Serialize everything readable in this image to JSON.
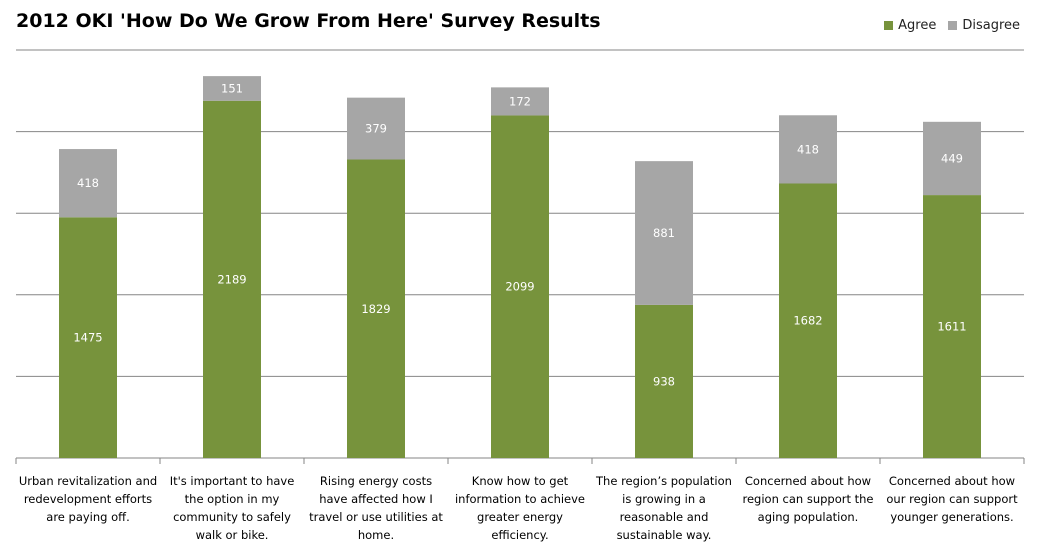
{
  "chart_data": {
    "type": "bar",
    "stacked": true,
    "title": "2012 OKI 'How Do We Grow From Here' Survey Results",
    "categories": [
      "Urban revitalization and redevelopment efforts are paying off.",
      "It's important to have the option in my community to safely walk or bike.",
      "Rising energy costs have affected how I travel or use utilities at home.",
      "Know how to get information to achieve greater energy efficiency.",
      "The region’s population is growing in a reasonable and sustainable  way.",
      "Concerned about how region can support the aging population.",
      "Concerned about how our region can support younger generations."
    ],
    "series": [
      {
        "name": "Agree",
        "color": "#77933c",
        "values": [
          1475,
          2189,
          1829,
          2099,
          938,
          1682,
          1611
        ]
      },
      {
        "name": "Disagree",
        "color": "#a6a6a6",
        "values": [
          418,
          151,
          379,
          172,
          881,
          418,
          449
        ]
      }
    ],
    "ylim": [
      0,
      2500
    ],
    "y_gridlines": [
      500,
      1000,
      1500,
      2000,
      2500
    ],
    "y_tick_labels_shown": false,
    "grid": true,
    "legend_position": "top-right",
    "data_labels": true
  }
}
